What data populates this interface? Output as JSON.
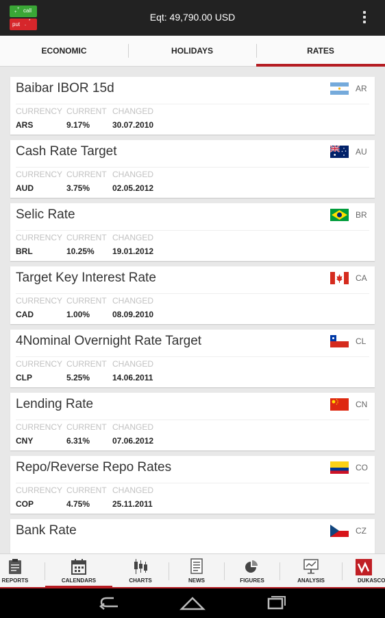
{
  "header": {
    "call_label": "call",
    "put_label": "put",
    "equity": "Eqt: 49,790.00 USD"
  },
  "tabs": [
    {
      "label": "ECONOMIC"
    },
    {
      "label": "HOLIDAYS"
    },
    {
      "label": "RATES",
      "active": true
    }
  ],
  "columns": {
    "currency": "CURRENCY",
    "current": "CURRENT",
    "changed": "CHANGED"
  },
  "rates": [
    {
      "title": "Baibar IBOR 15d",
      "country": "AR",
      "flag": "argentina-flag-icon",
      "currency": "ARS",
      "current": "9.17%",
      "changed": "30.07.2010"
    },
    {
      "title": "Cash Rate Target",
      "country": "AU",
      "flag": "australia-flag-icon",
      "currency": "AUD",
      "current": "3.75%",
      "changed": "02.05.2012"
    },
    {
      "title": "Selic Rate",
      "country": "BR",
      "flag": "brazil-flag-icon",
      "currency": "BRL",
      "current": "10.25%",
      "changed": "19.01.2012"
    },
    {
      "title": "Target Key Interest Rate",
      "country": "CA",
      "flag": "canada-flag-icon",
      "currency": "CAD",
      "current": "1.00%",
      "changed": "08.09.2010"
    },
    {
      "title": "4Nominal Overnight Rate Target",
      "country": "CL",
      "flag": "chile-flag-icon",
      "currency": "CLP",
      "current": "5.25%",
      "changed": "14.06.2011"
    },
    {
      "title": "Lending Rate",
      "country": "CN",
      "flag": "china-flag-icon",
      "currency": "CNY",
      "current": "6.31%",
      "changed": "07.06.2012"
    },
    {
      "title": "Repo/Reverse Repo Rates",
      "country": "CO",
      "flag": "colombia-flag-icon",
      "currency": "COP",
      "current": "4.75%",
      "changed": "25.11.2011"
    },
    {
      "title": "Bank Rate",
      "country": "CZ",
      "flag": "czech-flag-icon"
    }
  ],
  "bottom_nav": [
    {
      "label": "REPORTS",
      "icon": "clipboard-icon"
    },
    {
      "label": "CALENDARS",
      "icon": "calendar-icon",
      "active": true
    },
    {
      "label": "CHARTS",
      "icon": "candlestick-icon"
    },
    {
      "label": "NEWS",
      "icon": "newspaper-icon"
    },
    {
      "label": "FIGURES",
      "icon": "pie-chart-icon"
    },
    {
      "label": "ANALYSIS",
      "icon": "presentation-icon"
    },
    {
      "label": "DUKASCO",
      "icon": "dukascopy-logo-icon"
    }
  ],
  "colors": {
    "accent": "#b51c22",
    "call_green": "#3aa636",
    "put_red": "#d6262b",
    "topbar": "#222222"
  }
}
